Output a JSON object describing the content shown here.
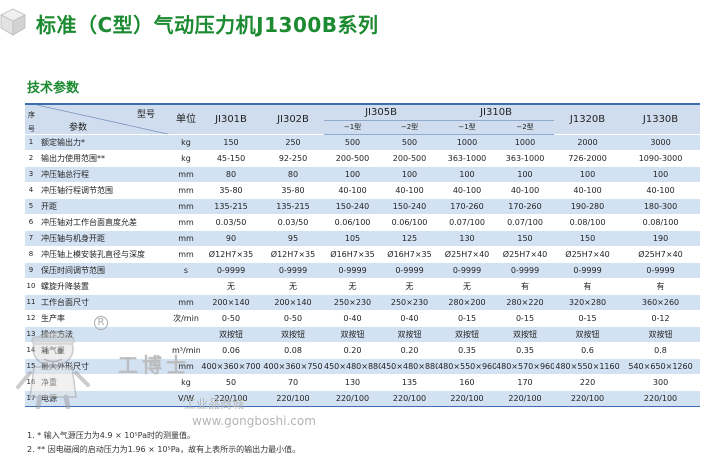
{
  "title": "标准（C型）气动压力机J1300B系列",
  "subtitle": "技术参数",
  "header": {
    "no_top": "序",
    "no_bottom": "号",
    "model_label": "型号",
    "param_label": "参数",
    "unit_label": "单位",
    "models": [
      "JI301B",
      "JI302B",
      "JI305B",
      "JI310B",
      "J1320B",
      "J1330B"
    ],
    "sub_models": [
      "−1型",
      "−2型",
      "−1型",
      "−2型"
    ]
  },
  "rows": [
    {
      "no": "1",
      "name": "额定输出力*",
      "unit": "kg",
      "values": [
        "150",
        "250",
        "500",
        "500",
        "1000",
        "1000",
        "2000",
        "3000"
      ]
    },
    {
      "no": "2",
      "name": "输出力使用范围**",
      "unit": "kg",
      "values": [
        "45-150",
        "92-250",
        "200-500",
        "200-500",
        "363-1000",
        "363-1000",
        "726-2000",
        "1090-3000"
      ]
    },
    {
      "no": "3",
      "name": "冲压轴总行程",
      "unit": "mm",
      "values": [
        "80",
        "80",
        "100",
        "100",
        "100",
        "100",
        "100",
        "100"
      ]
    },
    {
      "no": "4",
      "name": "冲压轴行程调节范围",
      "unit": "mm",
      "values": [
        "35-80",
        "35-80",
        "40-100",
        "40-100",
        "40-100",
        "40-100",
        "40-100",
        "40-100"
      ]
    },
    {
      "no": "5",
      "name": "开距",
      "unit": "mm",
      "values": [
        "135-215",
        "135-215",
        "150-240",
        "150-240",
        "170-260",
        "170-260",
        "190-280",
        "180-300"
      ]
    },
    {
      "no": "6",
      "name": "冲压轴对工作台面直度允差",
      "unit": "mm",
      "values": [
        "0.03/50",
        "0.03/50",
        "0.06/100",
        "0.06/100",
        "0.07/100",
        "0.07/100",
        "0.08/100",
        "0.08/100"
      ]
    },
    {
      "no": "7",
      "name": "冲压轴与机身开距",
      "unit": "mm",
      "values": [
        "90",
        "95",
        "105",
        "125",
        "130",
        "150",
        "150",
        "190"
      ]
    },
    {
      "no": "8",
      "name": "冲压轴上模安装孔直径与深度",
      "unit": "mm",
      "values": [
        "Ø12H7×35",
        "Ø12H7×35",
        "Ø16H7×35",
        "Ø16H7×35",
        "Ø25H7×40",
        "Ø25H7×40",
        "Ø25H7×40",
        "Ø25H7×40"
      ]
    },
    {
      "no": "9",
      "name": "保压时间调节范围",
      "unit": "s",
      "values": [
        "0-9999",
        "0-9999",
        "0-9999",
        "0-9999",
        "0-9999",
        "0-9999",
        "0-9999",
        "0-9999"
      ]
    },
    {
      "no": "10",
      "name": "螺旋升降装置",
      "unit": "",
      "values": [
        "无",
        "无",
        "无",
        "无",
        "无",
        "有",
        "有",
        "有"
      ]
    },
    {
      "no": "11",
      "name": "工作台面尺寸",
      "unit": "mm",
      "values": [
        "200×140",
        "200×140",
        "250×230",
        "250×230",
        "280×200",
        "280×220",
        "320×280",
        "360×260"
      ]
    },
    {
      "no": "12",
      "name": "生产率",
      "unit": "次/min",
      "values": [
        "0-50",
        "0-50",
        "0-40",
        "0-40",
        "0-15",
        "0-15",
        "0-15",
        "0-12"
      ]
    },
    {
      "no": "13",
      "name": "操作方法",
      "unit": "",
      "values": [
        "双按钮",
        "双按钮",
        "双按钮",
        "双按钮",
        "双按钮",
        "双按钮",
        "双按钮",
        "双按钮"
      ]
    },
    {
      "no": "14",
      "name": "耗气量",
      "unit": "m³/min",
      "values": [
        "0.06",
        "0.08",
        "0.20",
        "0.20",
        "0.35",
        "0.35",
        "0.6",
        "0.8"
      ]
    },
    {
      "no": "15",
      "name": "最大外形尺寸",
      "unit": "mm",
      "values": [
        "400×360×700",
        "400×360×750",
        "450×480×880",
        "450×480×880",
        "480×550×960",
        "480×570×960",
        "480×550×1160",
        "540×650×1260"
      ]
    },
    {
      "no": "16",
      "name": "净重",
      "unit": "kg",
      "values": [
        "50",
        "70",
        "130",
        "135",
        "160",
        "170",
        "220",
        "300"
      ]
    },
    {
      "no": "17",
      "name": "电源",
      "unit": "V/W",
      "values": [
        "220/100",
        "220/100",
        "220/100",
        "220/100",
        "220/100",
        "220/100",
        "220/100",
        "220/100"
      ]
    }
  ],
  "notes": [
    "1. *  输入气源压力为4.9 × 10⁵Pa时的测量值。",
    "2. ** 因电磁阀的启动压力为1.96 × 10⁵Pa，故有上表所示的输出力最小值。"
  ],
  "watermark": {
    "brand": "工博士",
    "registered": "R",
    "cn": "工业品商城",
    "url": "www.gongboshi.com"
  },
  "colors": {
    "title_green": "#1c8a30",
    "row_blue": "#d3e2f3",
    "header_blue": "#cfddef",
    "rule_blue": "#3c6fb0"
  }
}
